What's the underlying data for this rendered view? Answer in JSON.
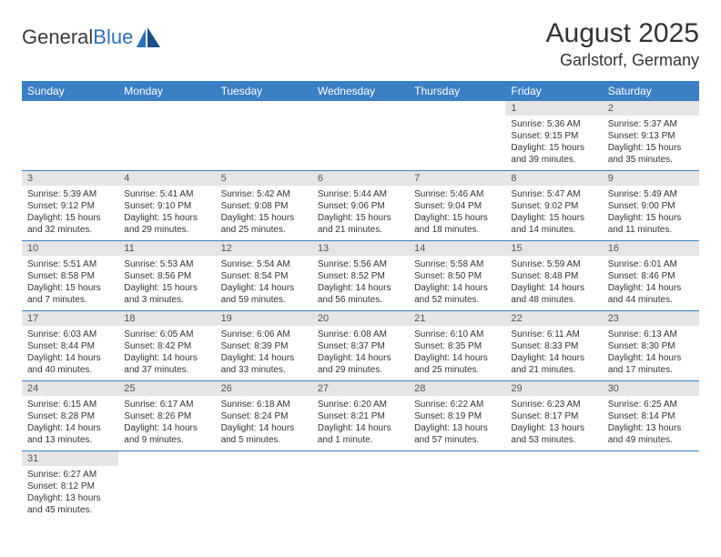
{
  "logo": {
    "text1": "General",
    "text2": "Blue"
  },
  "title": "August 2025",
  "location": "Garlstorf, Germany",
  "colors": {
    "header_bg": "#3b7fc4",
    "header_text": "#ffffff",
    "daynum_bg": "#e5e5e5",
    "border": "#3b7fc4",
    "logo_blue": "#2e6fb5"
  },
  "dayNames": [
    "Sunday",
    "Monday",
    "Tuesday",
    "Wednesday",
    "Thursday",
    "Friday",
    "Saturday"
  ],
  "weeks": [
    [
      {
        "n": "",
        "sr": "",
        "ss": "",
        "dl": ""
      },
      {
        "n": "",
        "sr": "",
        "ss": "",
        "dl": ""
      },
      {
        "n": "",
        "sr": "",
        "ss": "",
        "dl": ""
      },
      {
        "n": "",
        "sr": "",
        "ss": "",
        "dl": ""
      },
      {
        "n": "",
        "sr": "",
        "ss": "",
        "dl": ""
      },
      {
        "n": "1",
        "sr": "Sunrise: 5:36 AM",
        "ss": "Sunset: 9:15 PM",
        "dl": "Daylight: 15 hours and 39 minutes."
      },
      {
        "n": "2",
        "sr": "Sunrise: 5:37 AM",
        "ss": "Sunset: 9:13 PM",
        "dl": "Daylight: 15 hours and 35 minutes."
      }
    ],
    [
      {
        "n": "3",
        "sr": "Sunrise: 5:39 AM",
        "ss": "Sunset: 9:12 PM",
        "dl": "Daylight: 15 hours and 32 minutes."
      },
      {
        "n": "4",
        "sr": "Sunrise: 5:41 AM",
        "ss": "Sunset: 9:10 PM",
        "dl": "Daylight: 15 hours and 29 minutes."
      },
      {
        "n": "5",
        "sr": "Sunrise: 5:42 AM",
        "ss": "Sunset: 9:08 PM",
        "dl": "Daylight: 15 hours and 25 minutes."
      },
      {
        "n": "6",
        "sr": "Sunrise: 5:44 AM",
        "ss": "Sunset: 9:06 PM",
        "dl": "Daylight: 15 hours and 21 minutes."
      },
      {
        "n": "7",
        "sr": "Sunrise: 5:46 AM",
        "ss": "Sunset: 9:04 PM",
        "dl": "Daylight: 15 hours and 18 minutes."
      },
      {
        "n": "8",
        "sr": "Sunrise: 5:47 AM",
        "ss": "Sunset: 9:02 PM",
        "dl": "Daylight: 15 hours and 14 minutes."
      },
      {
        "n": "9",
        "sr": "Sunrise: 5:49 AM",
        "ss": "Sunset: 9:00 PM",
        "dl": "Daylight: 15 hours and 11 minutes."
      }
    ],
    [
      {
        "n": "10",
        "sr": "Sunrise: 5:51 AM",
        "ss": "Sunset: 8:58 PM",
        "dl": "Daylight: 15 hours and 7 minutes."
      },
      {
        "n": "11",
        "sr": "Sunrise: 5:53 AM",
        "ss": "Sunset: 8:56 PM",
        "dl": "Daylight: 15 hours and 3 minutes."
      },
      {
        "n": "12",
        "sr": "Sunrise: 5:54 AM",
        "ss": "Sunset: 8:54 PM",
        "dl": "Daylight: 14 hours and 59 minutes."
      },
      {
        "n": "13",
        "sr": "Sunrise: 5:56 AM",
        "ss": "Sunset: 8:52 PM",
        "dl": "Daylight: 14 hours and 56 minutes."
      },
      {
        "n": "14",
        "sr": "Sunrise: 5:58 AM",
        "ss": "Sunset: 8:50 PM",
        "dl": "Daylight: 14 hours and 52 minutes."
      },
      {
        "n": "15",
        "sr": "Sunrise: 5:59 AM",
        "ss": "Sunset: 8:48 PM",
        "dl": "Daylight: 14 hours and 48 minutes."
      },
      {
        "n": "16",
        "sr": "Sunrise: 6:01 AM",
        "ss": "Sunset: 8:46 PM",
        "dl": "Daylight: 14 hours and 44 minutes."
      }
    ],
    [
      {
        "n": "17",
        "sr": "Sunrise: 6:03 AM",
        "ss": "Sunset: 8:44 PM",
        "dl": "Daylight: 14 hours and 40 minutes."
      },
      {
        "n": "18",
        "sr": "Sunrise: 6:05 AM",
        "ss": "Sunset: 8:42 PM",
        "dl": "Daylight: 14 hours and 37 minutes."
      },
      {
        "n": "19",
        "sr": "Sunrise: 6:06 AM",
        "ss": "Sunset: 8:39 PM",
        "dl": "Daylight: 14 hours and 33 minutes."
      },
      {
        "n": "20",
        "sr": "Sunrise: 6:08 AM",
        "ss": "Sunset: 8:37 PM",
        "dl": "Daylight: 14 hours and 29 minutes."
      },
      {
        "n": "21",
        "sr": "Sunrise: 6:10 AM",
        "ss": "Sunset: 8:35 PM",
        "dl": "Daylight: 14 hours and 25 minutes."
      },
      {
        "n": "22",
        "sr": "Sunrise: 6:11 AM",
        "ss": "Sunset: 8:33 PM",
        "dl": "Daylight: 14 hours and 21 minutes."
      },
      {
        "n": "23",
        "sr": "Sunrise: 6:13 AM",
        "ss": "Sunset: 8:30 PM",
        "dl": "Daylight: 14 hours and 17 minutes."
      }
    ],
    [
      {
        "n": "24",
        "sr": "Sunrise: 6:15 AM",
        "ss": "Sunset: 8:28 PM",
        "dl": "Daylight: 14 hours and 13 minutes."
      },
      {
        "n": "25",
        "sr": "Sunrise: 6:17 AM",
        "ss": "Sunset: 8:26 PM",
        "dl": "Daylight: 14 hours and 9 minutes."
      },
      {
        "n": "26",
        "sr": "Sunrise: 6:18 AM",
        "ss": "Sunset: 8:24 PM",
        "dl": "Daylight: 14 hours and 5 minutes."
      },
      {
        "n": "27",
        "sr": "Sunrise: 6:20 AM",
        "ss": "Sunset: 8:21 PM",
        "dl": "Daylight: 14 hours and 1 minute."
      },
      {
        "n": "28",
        "sr": "Sunrise: 6:22 AM",
        "ss": "Sunset: 8:19 PM",
        "dl": "Daylight: 13 hours and 57 minutes."
      },
      {
        "n": "29",
        "sr": "Sunrise: 6:23 AM",
        "ss": "Sunset: 8:17 PM",
        "dl": "Daylight: 13 hours and 53 minutes."
      },
      {
        "n": "30",
        "sr": "Sunrise: 6:25 AM",
        "ss": "Sunset: 8:14 PM",
        "dl": "Daylight: 13 hours and 49 minutes."
      }
    ],
    [
      {
        "n": "31",
        "sr": "Sunrise: 6:27 AM",
        "ss": "Sunset: 8:12 PM",
        "dl": "Daylight: 13 hours and 45 minutes."
      },
      {
        "n": "",
        "sr": "",
        "ss": "",
        "dl": ""
      },
      {
        "n": "",
        "sr": "",
        "ss": "",
        "dl": ""
      },
      {
        "n": "",
        "sr": "",
        "ss": "",
        "dl": ""
      },
      {
        "n": "",
        "sr": "",
        "ss": "",
        "dl": ""
      },
      {
        "n": "",
        "sr": "",
        "ss": "",
        "dl": ""
      },
      {
        "n": "",
        "sr": "",
        "ss": "",
        "dl": ""
      }
    ]
  ]
}
